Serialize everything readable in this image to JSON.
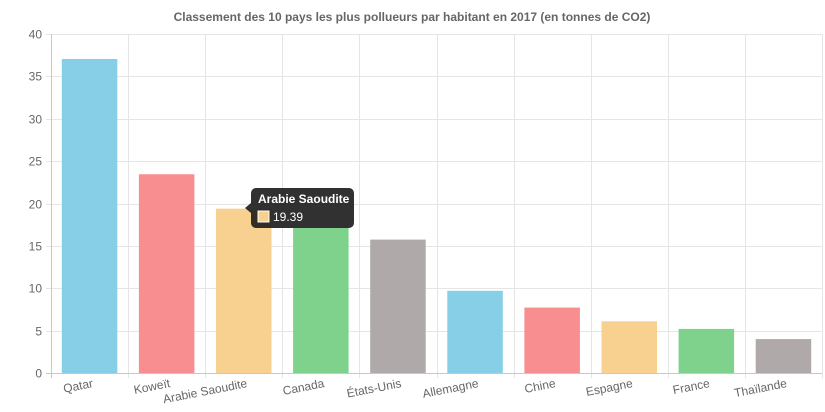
{
  "chart_data": {
    "type": "bar",
    "title": "Classement des 10 pays les plus pollueurs par habitant en 2017 (en tonnes de CO2)",
    "categories": [
      "Qatar",
      "Koweït",
      "Arabie Saoudite",
      "Canada",
      "États-Unis",
      "Allemagne",
      "Chine",
      "Espagne",
      "France",
      "Thaïlande"
    ],
    "values": [
      37.05,
      23.45,
      19.39,
      17.15,
      15.74,
      9.7,
      7.72,
      6.1,
      5.2,
      4.0
    ],
    "colors": [
      "#87cfe6",
      "#f88e8f",
      "#f8d090",
      "#7ed28c",
      "#b0a9a9",
      "#87cfe6",
      "#f88e8f",
      "#f8d090",
      "#7ed28c",
      "#b0a9a9"
    ],
    "ylim": [
      0,
      40
    ],
    "yticks": [
      0,
      5,
      10,
      15,
      20,
      25,
      30,
      35,
      40
    ],
    "grid": true,
    "xlabel": "",
    "ylabel": ""
  },
  "tooltip": {
    "title": "Arabie Saoudite",
    "value": "19.39",
    "swatch_color": "#f8d090"
  }
}
